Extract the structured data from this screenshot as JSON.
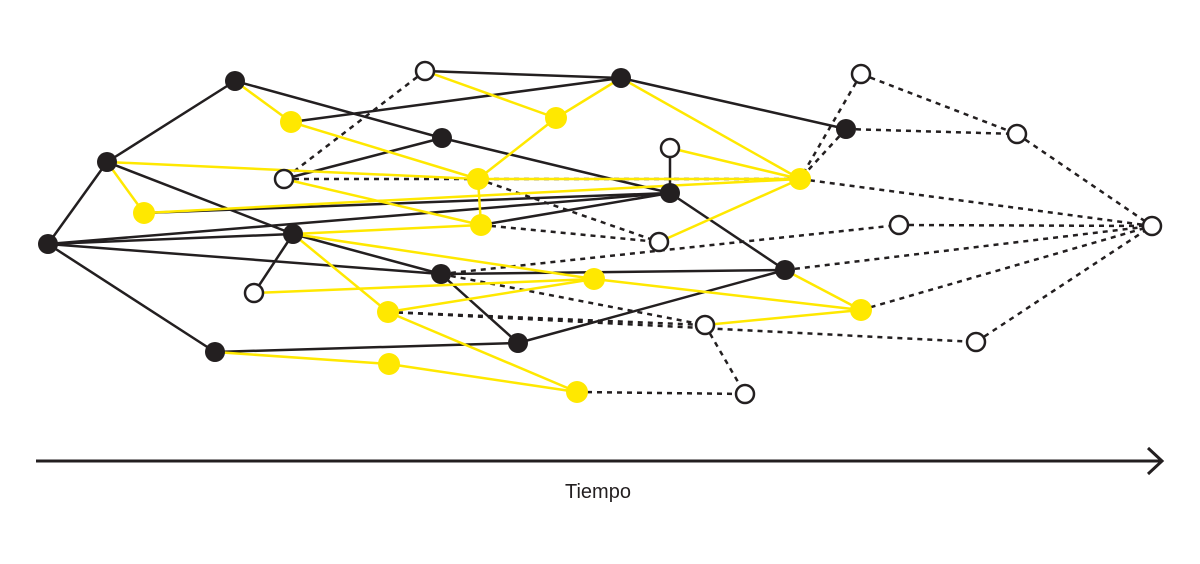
{
  "axis": {
    "label": "Tiempo"
  }
}
